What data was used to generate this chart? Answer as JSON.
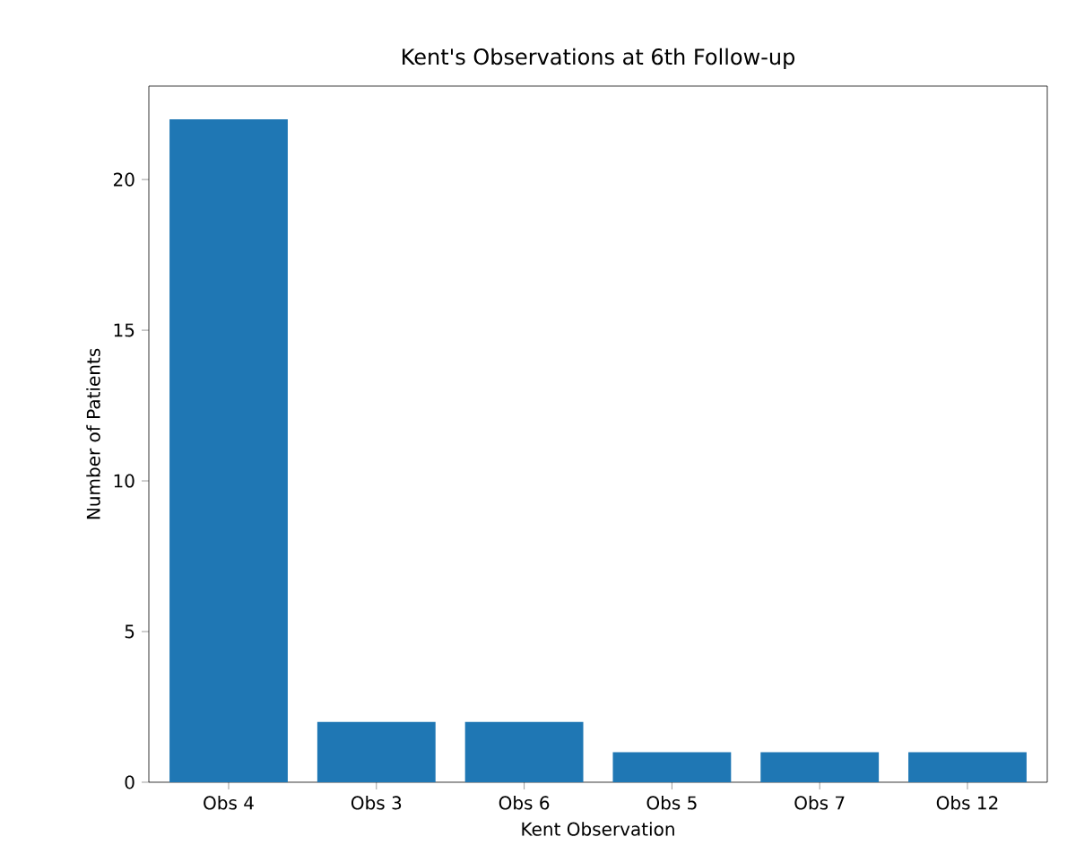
{
  "chart_data": {
    "type": "bar",
    "title": "Kent's Observations at 6th Follow-up",
    "xlabel": "Kent Observation",
    "ylabel": "Number of Patients",
    "categories": [
      "Obs 4",
      "Obs 3",
      "Obs 6",
      "Obs 5",
      "Obs 7",
      "Obs 12"
    ],
    "values": [
      22,
      2,
      2,
      1,
      1,
      1
    ],
    "color": "#1f77b4",
    "ylim": [
      0,
      23.1
    ],
    "yticks": [
      0,
      5,
      10,
      15,
      20
    ],
    "grid": false
  }
}
